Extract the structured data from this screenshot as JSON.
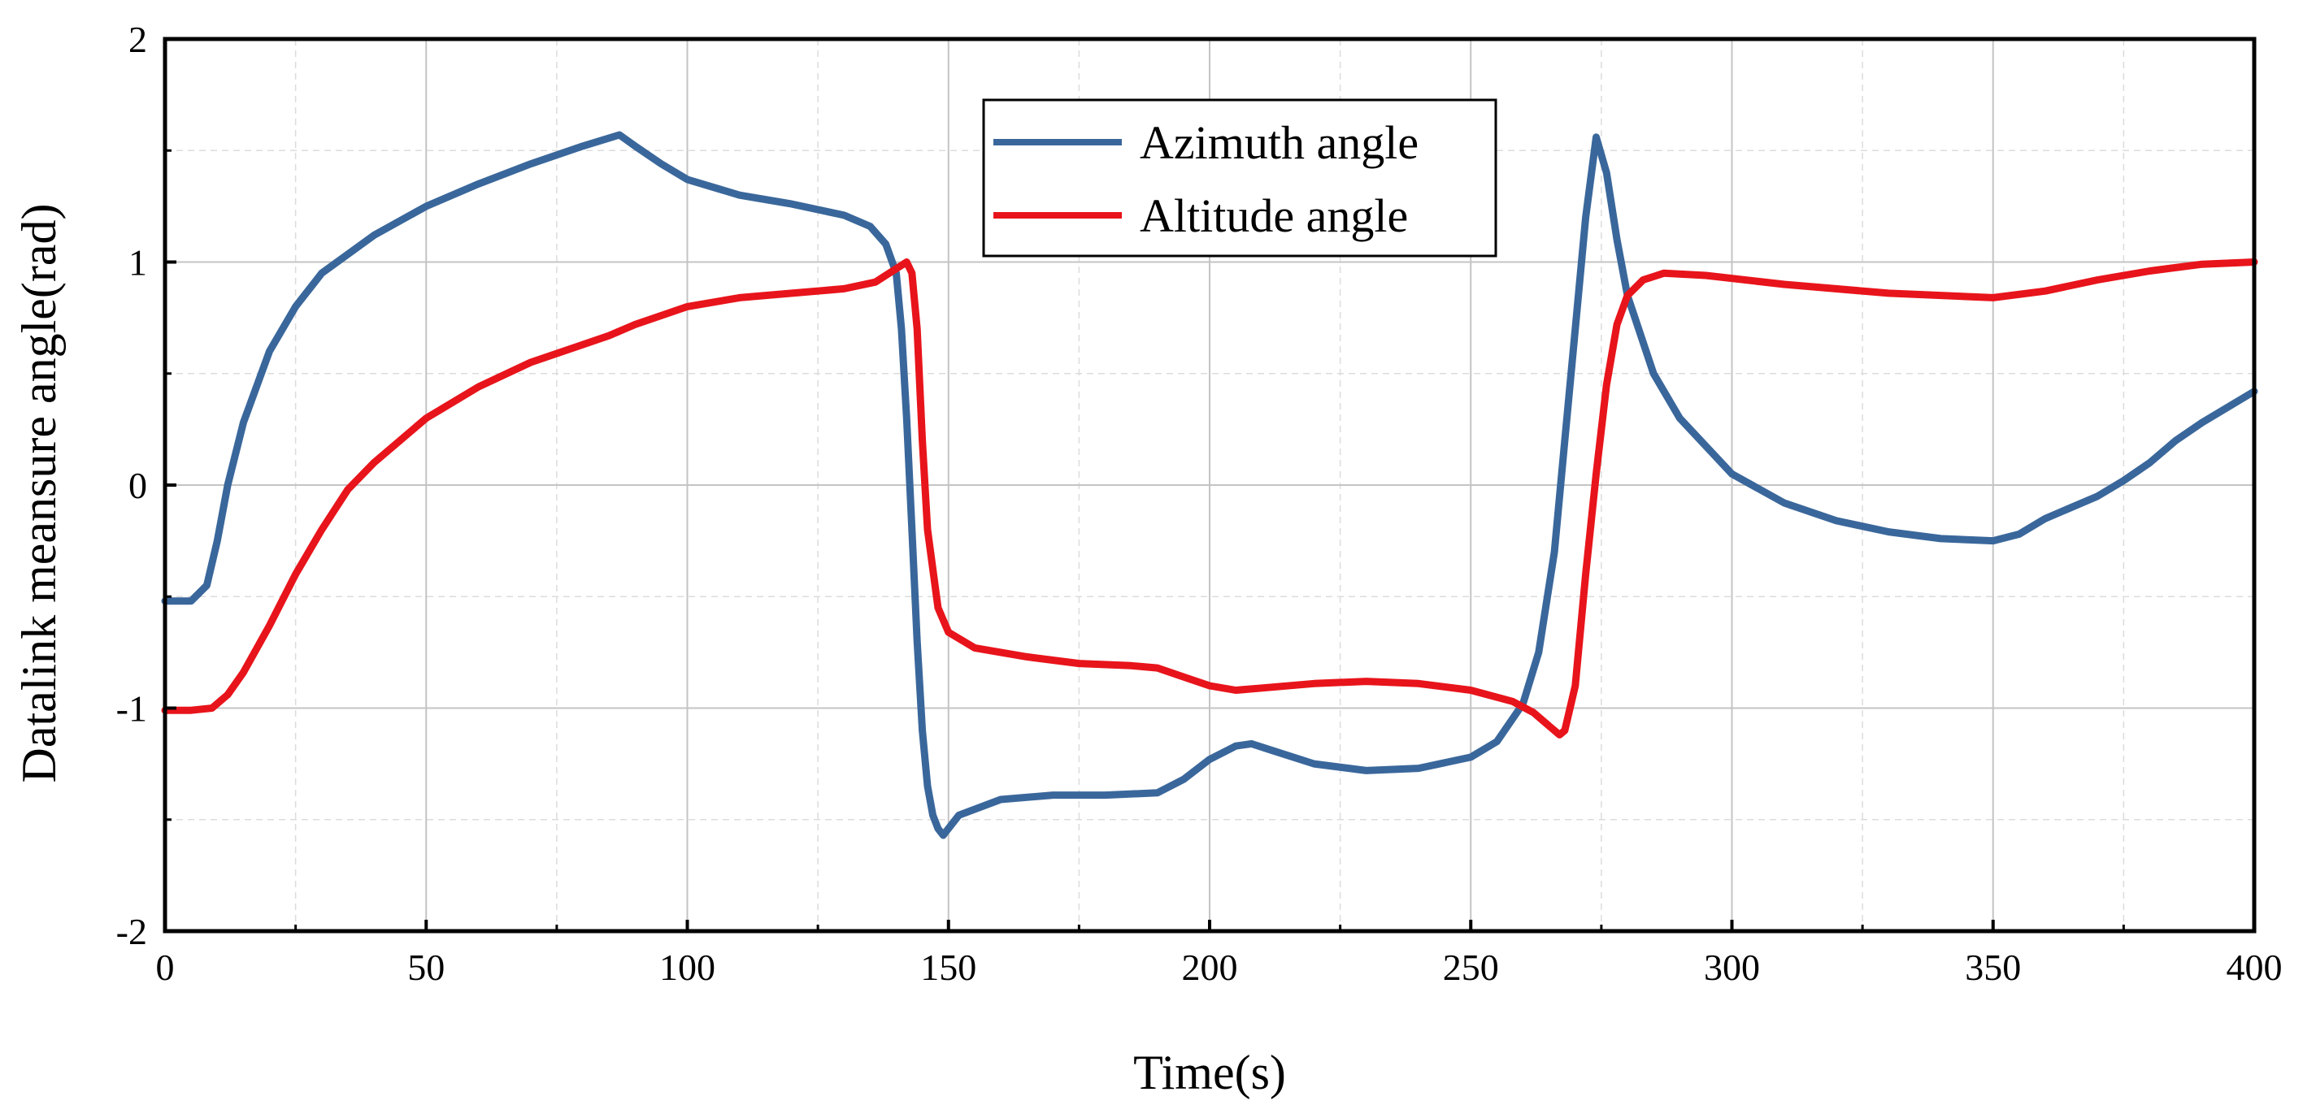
{
  "chart_data": {
    "type": "line",
    "title": "",
    "xlabel": "Time(s)",
    "ylabel": "Datalink meansure angle(rad)",
    "xlim": [
      0,
      400
    ],
    "ylim": [
      -2,
      2
    ],
    "xticks": [
      0,
      50,
      100,
      150,
      200,
      250,
      300,
      350,
      400
    ],
    "xtick_labels": [
      "0",
      "50",
      "100",
      "150",
      "200",
      "250",
      "300",
      "350",
      "400"
    ],
    "yticks": [
      -2,
      -1,
      0,
      1,
      2
    ],
    "ytick_labels": [
      "-2",
      "-1",
      "0",
      "1",
      "2"
    ],
    "grid": true,
    "legend_position": "top-center",
    "series": [
      {
        "name": "Azimuth angle",
        "color": "#3A679B",
        "points": [
          [
            0,
            -0.52
          ],
          [
            5,
            -0.52
          ],
          [
            8,
            -0.45
          ],
          [
            10,
            -0.25
          ],
          [
            12,
            0
          ],
          [
            15,
            0.28
          ],
          [
            20,
            0.6
          ],
          [
            25,
            0.8
          ],
          [
            30,
            0.95
          ],
          [
            40,
            1.12
          ],
          [
            50,
            1.25
          ],
          [
            60,
            1.35
          ],
          [
            70,
            1.44
          ],
          [
            80,
            1.52
          ],
          [
            87,
            1.57
          ],
          [
            90,
            1.52
          ],
          [
            95,
            1.44
          ],
          [
            100,
            1.37
          ],
          [
            110,
            1.3
          ],
          [
            120,
            1.26
          ],
          [
            130,
            1.21
          ],
          [
            135,
            1.16
          ],
          [
            138,
            1.08
          ],
          [
            140,
            0.95
          ],
          [
            141,
            0.7
          ],
          [
            142,
            0.3
          ],
          [
            143,
            -0.2
          ],
          [
            144,
            -0.7
          ],
          [
            145,
            -1.1
          ],
          [
            146,
            -1.35
          ],
          [
            147,
            -1.48
          ],
          [
            148,
            -1.54
          ],
          [
            149,
            -1.57
          ],
          [
            152,
            -1.48
          ],
          [
            160,
            -1.41
          ],
          [
            170,
            -1.39
          ],
          [
            180,
            -1.39
          ],
          [
            190,
            -1.38
          ],
          [
            195,
            -1.32
          ],
          [
            200,
            -1.23
          ],
          [
            205,
            -1.17
          ],
          [
            208,
            -1.16
          ],
          [
            212,
            -1.19
          ],
          [
            220,
            -1.25
          ],
          [
            230,
            -1.28
          ],
          [
            240,
            -1.27
          ],
          [
            250,
            -1.22
          ],
          [
            255,
            -1.15
          ],
          [
            260,
            -0.98
          ],
          [
            263,
            -0.75
          ],
          [
            266,
            -0.3
          ],
          [
            268,
            0.2
          ],
          [
            270,
            0.7
          ],
          [
            272,
            1.2
          ],
          [
            274,
            1.56
          ],
          [
            276,
            1.4
          ],
          [
            278,
            1.1
          ],
          [
            280,
            0.85
          ],
          [
            285,
            0.5
          ],
          [
            290,
            0.3
          ],
          [
            300,
            0.05
          ],
          [
            310,
            -0.08
          ],
          [
            320,
            -0.16
          ],
          [
            330,
            -0.21
          ],
          [
            340,
            -0.24
          ],
          [
            350,
            -0.25
          ],
          [
            355,
            -0.22
          ],
          [
            360,
            -0.15
          ],
          [
            370,
            -0.05
          ],
          [
            375,
            0.02
          ],
          [
            380,
            0.1
          ],
          [
            385,
            0.2
          ],
          [
            390,
            0.28
          ],
          [
            400,
            0.42
          ]
        ]
      },
      {
        "name": "Altitude angle",
        "color": "#E8141B",
        "points": [
          [
            0,
            -1.01
          ],
          [
            5,
            -1.01
          ],
          [
            9,
            -1.0
          ],
          [
            12,
            -0.94
          ],
          [
            15,
            -0.84
          ],
          [
            20,
            -0.63
          ],
          [
            25,
            -0.4
          ],
          [
            30,
            -0.2
          ],
          [
            35,
            -0.02
          ],
          [
            40,
            0.1
          ],
          [
            50,
            0.3
          ],
          [
            60,
            0.44
          ],
          [
            70,
            0.55
          ],
          [
            80,
            0.63
          ],
          [
            85,
            0.67
          ],
          [
            90,
            0.72
          ],
          [
            100,
            0.8
          ],
          [
            110,
            0.84
          ],
          [
            120,
            0.86
          ],
          [
            130,
            0.88
          ],
          [
            136,
            0.91
          ],
          [
            140,
            0.97
          ],
          [
            142,
            1.0
          ],
          [
            143,
            0.95
          ],
          [
            144,
            0.7
          ],
          [
            145,
            0.2
          ],
          [
            146,
            -0.2
          ],
          [
            148,
            -0.55
          ],
          [
            150,
            -0.66
          ],
          [
            155,
            -0.73
          ],
          [
            165,
            -0.77
          ],
          [
            175,
            -0.8
          ],
          [
            185,
            -0.81
          ],
          [
            190,
            -0.82
          ],
          [
            195,
            -0.86
          ],
          [
            200,
            -0.9
          ],
          [
            205,
            -0.92
          ],
          [
            210,
            -0.91
          ],
          [
            220,
            -0.89
          ],
          [
            230,
            -0.88
          ],
          [
            240,
            -0.89
          ],
          [
            250,
            -0.92
          ],
          [
            258,
            -0.97
          ],
          [
            262,
            -1.02
          ],
          [
            265,
            -1.08
          ],
          [
            267,
            -1.12
          ],
          [
            268,
            -1.1
          ],
          [
            270,
            -0.9
          ],
          [
            272,
            -0.4
          ],
          [
            274,
            0.05
          ],
          [
            276,
            0.45
          ],
          [
            278,
            0.72
          ],
          [
            280,
            0.85
          ],
          [
            283,
            0.92
          ],
          [
            287,
            0.95
          ],
          [
            295,
            0.94
          ],
          [
            310,
            0.9
          ],
          [
            330,
            0.86
          ],
          [
            350,
            0.84
          ],
          [
            360,
            0.87
          ],
          [
            370,
            0.92
          ],
          [
            380,
            0.96
          ],
          [
            390,
            0.99
          ],
          [
            400,
            1.0
          ]
        ]
      }
    ]
  }
}
